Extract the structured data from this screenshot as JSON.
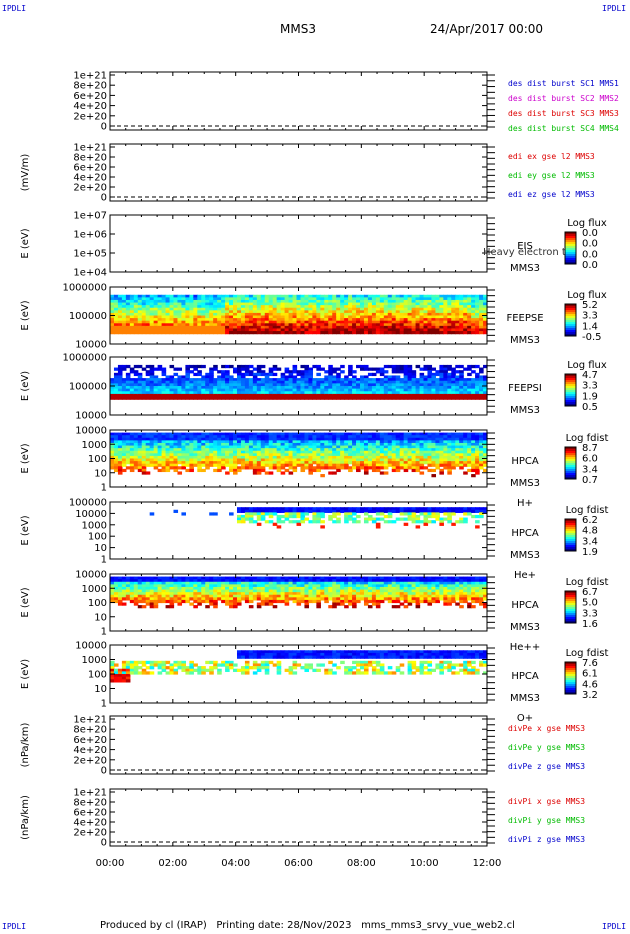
{
  "corners": {
    "tl": "IPDLI",
    "tr": "IPDLI",
    "bl": "IPDLI",
    "br": "IPDLI"
  },
  "header": {
    "mission": "MMS3",
    "date": "24/Apr/2017 00:00"
  },
  "footer": {
    "produced": "Produced by cl (IRAP)",
    "printing": "Printing date: 28/Nov/2023",
    "file": "mms_mms3_srvy_vue_web2.cl"
  },
  "time_axis": {
    "ticks": [
      "00:00",
      "02:00",
      "04:00",
      "06:00",
      "08:00",
      "10:00",
      "12:00"
    ]
  },
  "chart_data": [
    {
      "type": "line",
      "ylabel": "",
      "yticks": [
        "1e+21",
        "8e+20",
        "6e+20",
        "4e+20",
        "2e+20",
        "0"
      ],
      "legend": [
        {
          "text": "des dist burst SC1 MMS1",
          "color": "#0000cc"
        },
        {
          "text": "des dist burst SC2 MMS2",
          "color": "#cc00cc"
        },
        {
          "text": "des dist burst SC3 MMS3",
          "color": "#dd0000"
        },
        {
          "text": "des dist burst SC4 MMS4",
          "color": "#00bb00"
        }
      ]
    },
    {
      "type": "line",
      "ylabel": "(mV/m)",
      "yticks": [
        "1e+21",
        "8e+20",
        "6e+20",
        "4e+20",
        "2e+20",
        "0"
      ],
      "legend": [
        {
          "text": "edi ex gse l2 MMS3",
          "color": "#dd0000"
        },
        {
          "text": "edi ey gse l2 MMS3",
          "color": "#00bb00"
        },
        {
          "text": "edi ez gse l2 MMS3",
          "color": "#0000cc"
        }
      ]
    },
    {
      "type": "heatmap",
      "ylabel": "E (eV)",
      "yticks": [
        "1e+07",
        "1e+06",
        "1e+05",
        "1e+04"
      ],
      "instrument": "EIS",
      "sc": "MMS3",
      "species": "",
      "overlay": "Heavy electron to",
      "cbar_title": "Log flux",
      "cbar_ticks": [
        "0.0",
        "0.0",
        "0.0",
        "0.0"
      ]
    },
    {
      "type": "heatmap",
      "ylabel": "E (eV)",
      "yticks": [
        "1000000",
        "100000",
        "10000"
      ],
      "instrument": "FEEPSE",
      "sc": "MMS3",
      "species": "",
      "cbar_title": "Log flux",
      "cbar_ticks": [
        "5.2",
        "3.3",
        "1.4",
        "-0.5"
      ]
    },
    {
      "type": "heatmap",
      "ylabel": "E (eV)",
      "yticks": [
        "1000000",
        "100000",
        "10000"
      ],
      "instrument": "FEEPSI",
      "sc": "MMS3",
      "species": "",
      "cbar_title": "Log flux",
      "cbar_ticks": [
        "4.7",
        "3.3",
        "1.9",
        "0.5"
      ]
    },
    {
      "type": "heatmap",
      "ylabel": "E (eV)",
      "yticks": [
        "10000",
        "1000",
        "100",
        "10",
        "1"
      ],
      "instrument": "HPCA",
      "sc": "MMS3",
      "species": "H+",
      "cbar_title": "Log fdist",
      "cbar_ticks": [
        "8.7",
        "6.0",
        "3.4",
        "0.7"
      ]
    },
    {
      "type": "heatmap",
      "ylabel": "E (eV)",
      "yticks": [
        "100000",
        "10000",
        "1000",
        "100",
        "10",
        "1"
      ],
      "instrument": "HPCA",
      "sc": "MMS3",
      "species": "He+",
      "cbar_title": "Log fdist",
      "cbar_ticks": [
        "6.2",
        "4.8",
        "3.4",
        "1.9"
      ]
    },
    {
      "type": "heatmap",
      "ylabel": "E (eV)",
      "yticks": [
        "10000",
        "1000",
        "100",
        "10",
        "1"
      ],
      "instrument": "HPCA",
      "sc": "MMS3",
      "species": "He++",
      "cbar_title": "Log fdist",
      "cbar_ticks": [
        "6.7",
        "5.0",
        "3.3",
        "1.6"
      ]
    },
    {
      "type": "heatmap",
      "ylabel": "E (eV)",
      "yticks": [
        "10000",
        "1000",
        "100",
        "10",
        "1"
      ],
      "instrument": "HPCA",
      "sc": "MMS3",
      "species": "O+",
      "cbar_title": "Log fdist",
      "cbar_ticks": [
        "7.6",
        "6.1",
        "4.6",
        "3.2"
      ]
    },
    {
      "type": "line",
      "ylabel": "(nPa/km)",
      "yticks": [
        "1e+21",
        "8e+20",
        "6e+20",
        "4e+20",
        "2e+20",
        "0"
      ],
      "legend": [
        {
          "text": "divPe x gse MMS3",
          "color": "#dd0000"
        },
        {
          "text": "divPe y gse MMS3",
          "color": "#00bb00"
        },
        {
          "text": "divPe z gse MMS3",
          "color": "#0000cc"
        }
      ]
    },
    {
      "type": "line",
      "ylabel": "(nPa/km)",
      "yticks": [
        "1e+21",
        "8e+20",
        "6e+20",
        "4e+20",
        "2e+20",
        "0"
      ],
      "legend": [
        {
          "text": "divPi x gse MMS3",
          "color": "#dd0000"
        },
        {
          "text": "divPi y gse MMS3",
          "color": "#00bb00"
        },
        {
          "text": "divPi z gse MMS3",
          "color": "#0000cc"
        }
      ]
    }
  ]
}
